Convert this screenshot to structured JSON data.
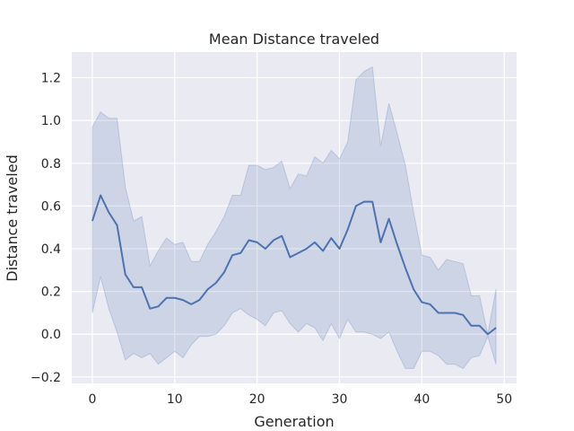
{
  "chart_data": {
    "type": "line",
    "title": "Mean Distance traveled",
    "xlabel": "Generation",
    "ylabel": "Distance traveled",
    "xlim": [
      -2.5,
      51.5
    ],
    "ylim": [
      -0.23,
      1.32
    ],
    "xticks": [
      0,
      10,
      20,
      30,
      40,
      50
    ],
    "yticks": [
      -0.2,
      0.0,
      0.2,
      0.4,
      0.6,
      0.8,
      1.0,
      1.2
    ],
    "xtick_labels": [
      "0",
      "10",
      "20",
      "30",
      "40",
      "50"
    ],
    "ytick_labels": [
      "−0.2",
      "0.0",
      "0.2",
      "0.4",
      "0.6",
      "0.8",
      "1.0",
      "1.2"
    ],
    "grid": true,
    "background": "#eaeaf2",
    "line_color": "#4c72b0",
    "band_color": "#4c72b0",
    "x": [
      0,
      1,
      2,
      3,
      4,
      5,
      6,
      7,
      8,
      9,
      10,
      11,
      12,
      13,
      14,
      15,
      16,
      17,
      18,
      19,
      20,
      21,
      22,
      23,
      24,
      25,
      26,
      27,
      28,
      29,
      30,
      31,
      32,
      33,
      34,
      35,
      36,
      37,
      38,
      39,
      40,
      41,
      42,
      43,
      44,
      45,
      46,
      47,
      48,
      49
    ],
    "series": [
      {
        "values": [
          0.53,
          0.65,
          0.57,
          0.51,
          0.28,
          0.22,
          0.22,
          0.12,
          0.13,
          0.17,
          0.17,
          0.16,
          0.14,
          0.16,
          0.21,
          0.24,
          0.29,
          0.37,
          0.38,
          0.44,
          0.43,
          0.4,
          0.44,
          0.46,
          0.36,
          0.38,
          0.4,
          0.43,
          0.39,
          0.45,
          0.4,
          0.49,
          0.6,
          0.62,
          0.62,
          0.43,
          0.54,
          0.42,
          0.31,
          0.21,
          0.15,
          0.14,
          0.1,
          0.1,
          0.1,
          0.09,
          0.04,
          0.04,
          0.0,
          0.03
        ],
        "lower": [
          0.1,
          0.27,
          0.12,
          0.01,
          -0.12,
          -0.09,
          -0.11,
          -0.09,
          -0.14,
          -0.11,
          -0.08,
          -0.11,
          -0.05,
          -0.01,
          -0.01,
          0.0,
          0.04,
          0.1,
          0.12,
          0.09,
          0.07,
          0.04,
          0.1,
          0.11,
          0.05,
          0.01,
          0.05,
          0.03,
          -0.03,
          0.05,
          -0.02,
          0.07,
          0.01,
          0.01,
          0.0,
          -0.02,
          0.01,
          -0.08,
          -0.16,
          -0.16,
          -0.08,
          -0.08,
          -0.1,
          -0.14,
          -0.14,
          -0.16,
          -0.11,
          -0.1,
          -0.01,
          -0.14
        ],
        "upper": [
          0.97,
          1.04,
          1.01,
          1.01,
          0.69,
          0.53,
          0.55,
          0.32,
          0.39,
          0.45,
          0.42,
          0.43,
          0.34,
          0.34,
          0.42,
          0.48,
          0.55,
          0.65,
          0.65,
          0.79,
          0.79,
          0.77,
          0.78,
          0.81,
          0.68,
          0.75,
          0.74,
          0.83,
          0.8,
          0.86,
          0.82,
          0.9,
          1.19,
          1.23,
          1.25,
          0.88,
          1.08,
          0.94,
          0.79,
          0.57,
          0.37,
          0.36,
          0.3,
          0.35,
          0.34,
          0.33,
          0.18,
          0.18,
          0.0,
          0.21
        ]
      }
    ]
  }
}
